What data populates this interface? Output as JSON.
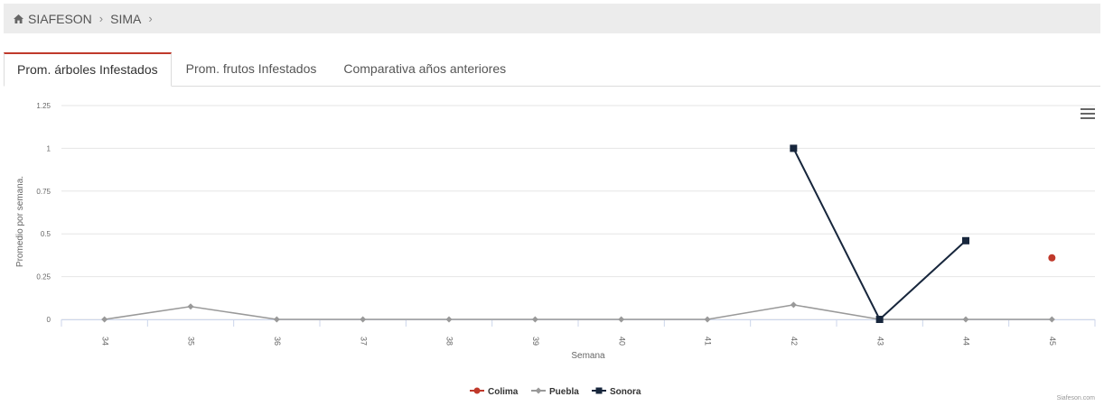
{
  "breadcrumb": {
    "items": [
      "SIAFESON",
      "SIMA"
    ]
  },
  "tabs": [
    {
      "label": "Prom. árboles Infestados",
      "active": true
    },
    {
      "label": "Prom. frutos Infestados",
      "active": false
    },
    {
      "label": "Comparativa años anteriores",
      "active": false
    }
  ],
  "credit": "Siafeson.com",
  "colors": {
    "Colima": "#c0392b",
    "Puebla": "#999999",
    "Sonora": "#17263c",
    "active_tab": "#c0392b"
  },
  "chart_data": {
    "type": "line",
    "xlabel": "Semana",
    "ylabel": "Promedio por semana.",
    "categories": [
      "34",
      "35",
      "36",
      "37",
      "38",
      "39",
      "40",
      "41",
      "42",
      "43",
      "44",
      "45"
    ],
    "yticks": [
      "0",
      "0.25",
      "0.5",
      "0.75",
      "1",
      "1.25"
    ],
    "ylim": [
      0,
      1.25
    ],
    "grid": true,
    "legend_position": "bottom-center",
    "series": [
      {
        "name": "Colima",
        "marker": "circle",
        "values": [
          null,
          null,
          null,
          null,
          null,
          null,
          null,
          null,
          null,
          null,
          null,
          0.36
        ]
      },
      {
        "name": "Puebla",
        "marker": "diamond",
        "values": [
          0,
          0.075,
          0,
          0,
          0,
          0,
          0,
          0,
          0.085,
          0,
          0,
          0
        ]
      },
      {
        "name": "Sonora",
        "marker": "square",
        "values": [
          null,
          null,
          null,
          null,
          null,
          null,
          null,
          null,
          1,
          0,
          0.46,
          null
        ]
      }
    ]
  }
}
